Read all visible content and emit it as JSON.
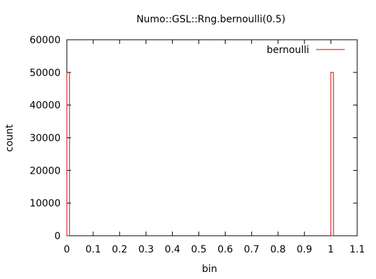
{
  "chart_data": {
    "type": "bar",
    "title": "Numo::GSL::Rng.bernoulli(0.5)",
    "xlabel": "bin",
    "ylabel": "count",
    "xlim": [
      0,
      1.1
    ],
    "ylim": [
      0,
      60000
    ],
    "x_ticks": [
      "0",
      "0.1",
      "0.2",
      "0.3",
      "0.4",
      "0.5",
      "0.6",
      "0.7",
      "0.8",
      "0.9",
      "1",
      "1.1"
    ],
    "y_ticks": [
      "0",
      "10000",
      "20000",
      "30000",
      "40000",
      "50000",
      "60000"
    ],
    "grid": false,
    "legend_position": "top-right",
    "series": [
      {
        "name": "bernoulli",
        "color": "#cc0000",
        "bins": [
          {
            "x_start": 0.0,
            "x_end": 0.01,
            "value": 50000
          },
          {
            "x_start": 1.0,
            "x_end": 1.01,
            "value": 50000
          }
        ]
      }
    ]
  }
}
